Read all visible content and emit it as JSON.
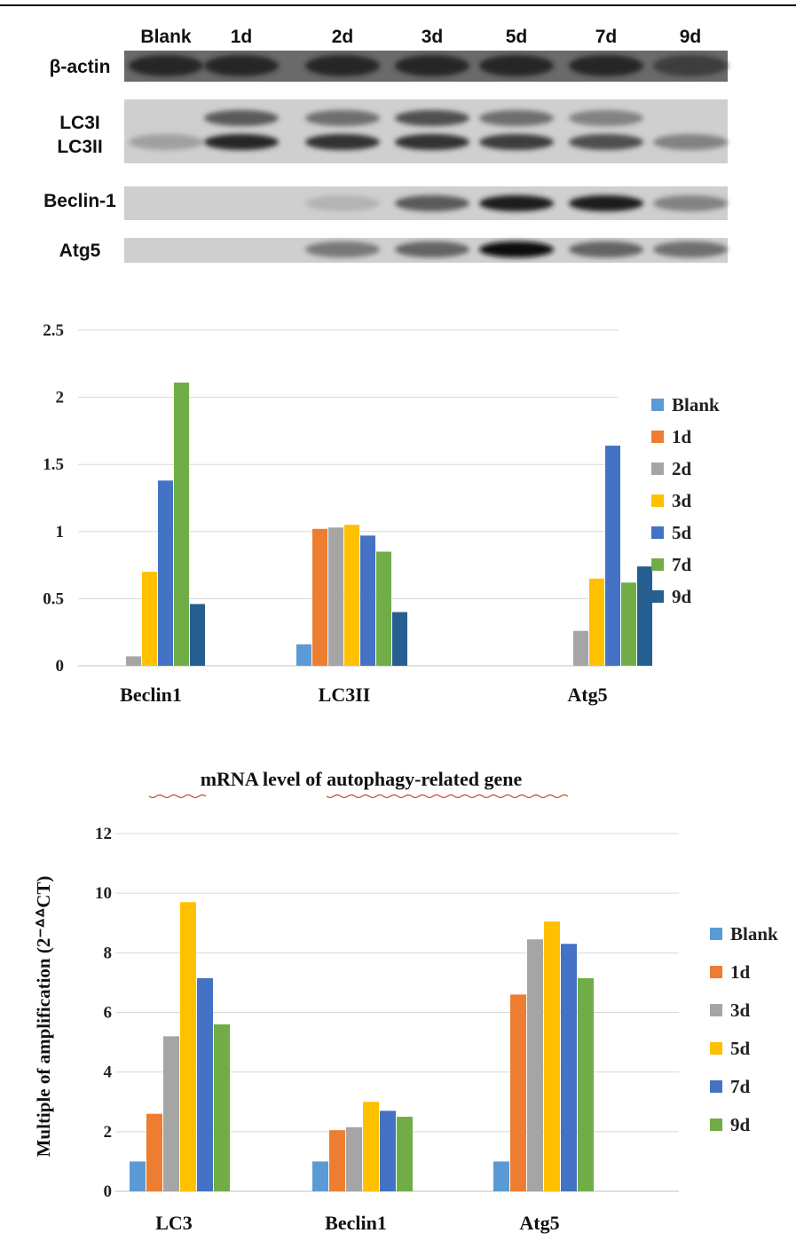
{
  "western_blot": {
    "lanes": [
      "Blank",
      "1d",
      "2d",
      "3d",
      "5d",
      "7d",
      "9d"
    ],
    "rows": [
      {
        "label": "β-actin",
        "intensity": [
          0.85,
          0.85,
          0.85,
          0.85,
          0.85,
          0.85,
          0.75
        ]
      },
      {
        "label": "LC3I",
        "intensity": [
          0.0,
          0.6,
          0.5,
          0.65,
          0.5,
          0.4,
          0.0
        ]
      },
      {
        "label": "LC3II",
        "intensity": [
          0.25,
          0.85,
          0.8,
          0.8,
          0.75,
          0.65,
          0.4
        ]
      },
      {
        "label": "Beclin-1",
        "intensity": [
          0.0,
          0.0,
          0.15,
          0.6,
          0.9,
          0.9,
          0.4
        ]
      },
      {
        "label": "Atg5",
        "intensity": [
          0.0,
          0.0,
          0.45,
          0.55,
          1.0,
          0.55,
          0.5
        ]
      }
    ]
  },
  "chart_data": [
    {
      "type": "bar",
      "title": "",
      "xlabel": "",
      "ylabel": "",
      "ylim": [
        0,
        2.5
      ],
      "yticks": [
        "0",
        "0.5",
        "1",
        "1.5",
        "2",
        "2.5"
      ],
      "grid": true,
      "legend_position": "right",
      "categories": [
        "Beclin1",
        "LC3II",
        "Atg5"
      ],
      "series": [
        {
          "name": "Blank",
          "color": "#5B9BD5",
          "values": [
            0,
            0.16,
            0
          ]
        },
        {
          "name": "1d",
          "color": "#ED7D31",
          "values": [
            0,
            1.02,
            0
          ]
        },
        {
          "name": "2d",
          "color": "#A5A5A5",
          "values": [
            0.07,
            1.03,
            0.26
          ]
        },
        {
          "name": "3d",
          "color": "#FFC000",
          "values": [
            0.7,
            1.05,
            0.65
          ]
        },
        {
          "name": "5d",
          "color": "#4472C4",
          "values": [
            1.38,
            0.97,
            1.64
          ]
        },
        {
          "name": "7d",
          "color": "#70AD47",
          "values": [
            2.11,
            0.85,
            0.62
          ]
        },
        {
          "name": "9d",
          "color": "#255E91",
          "values": [
            0.46,
            0.4,
            0.74
          ]
        }
      ]
    },
    {
      "type": "bar",
      "title": "mRNA    level of autophagy-related gene",
      "xlabel": "",
      "ylabel": "Multiple of amplification (2⁻ᐞᐞCT)",
      "ylim": [
        0,
        12
      ],
      "yticks": [
        "0",
        "2",
        "4",
        "6",
        "8",
        "10",
        "12"
      ],
      "grid": true,
      "legend_position": "right",
      "categories": [
        "LC3",
        "Beclin1",
        "Atg5"
      ],
      "series": [
        {
          "name": "Blank",
          "color": "#5B9BD5",
          "values": [
            1.0,
            1.0,
            1.0
          ]
        },
        {
          "name": "1d",
          "color": "#ED7D31",
          "values": [
            2.6,
            2.05,
            6.6
          ]
        },
        {
          "name": "3d",
          "color": "#A5A5A5",
          "values": [
            5.2,
            2.15,
            8.45
          ]
        },
        {
          "name": "5d",
          "color": "#FFC000",
          "values": [
            9.7,
            3.0,
            9.05
          ]
        },
        {
          "name": "7d",
          "color": "#4472C4",
          "values": [
            7.15,
            2.7,
            8.3
          ]
        },
        {
          "name": "9d",
          "color": "#70AD47",
          "values": [
            5.6,
            2.5,
            7.15
          ]
        }
      ]
    }
  ]
}
